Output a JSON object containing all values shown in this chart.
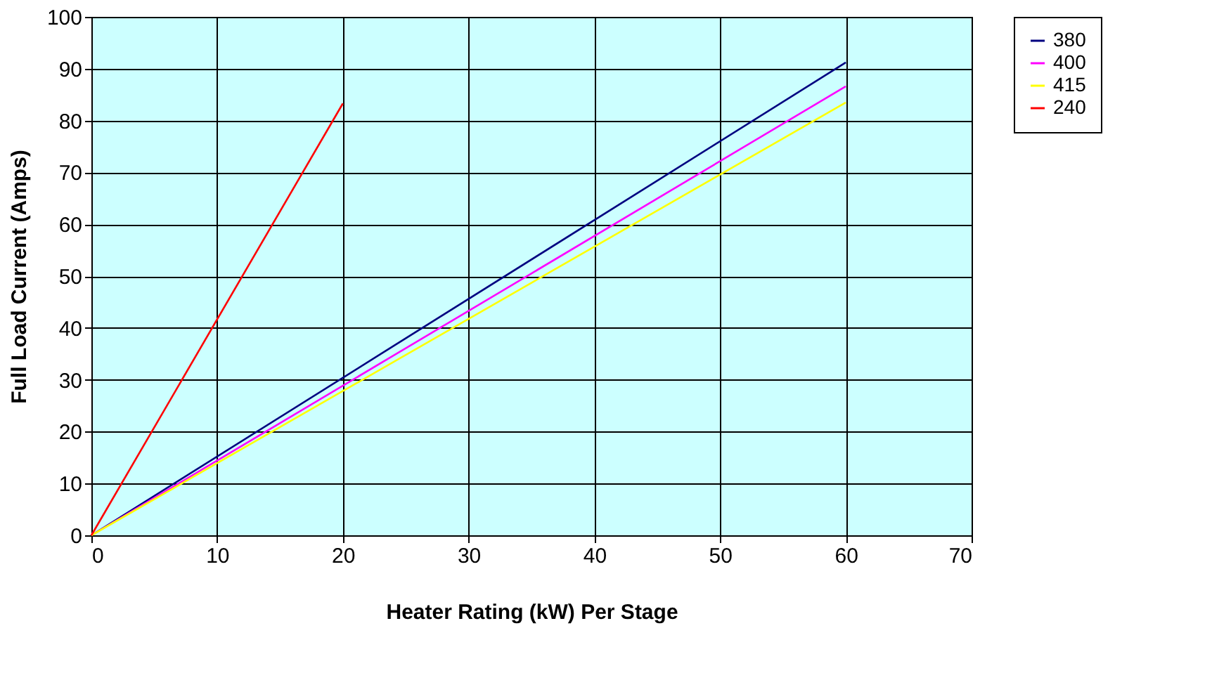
{
  "chart_data": {
    "type": "line",
    "xlabel": "Heater Rating (kW) Per Stage",
    "ylabel": "Full Load Current (Amps)",
    "series": [
      {
        "name": "380",
        "color": "#000080",
        "x": [
          0,
          60
        ],
        "values": [
          0,
          91.2
        ]
      },
      {
        "name": "400",
        "color": "#ff00ff",
        "x": [
          0,
          60
        ],
        "values": [
          0,
          86.6
        ]
      },
      {
        "name": "415",
        "color": "#ffff00",
        "x": [
          0,
          60
        ],
        "values": [
          0,
          83.5
        ]
      },
      {
        "name": "240",
        "color": "#ff0000",
        "x": [
          0,
          20
        ],
        "values": [
          0,
          83.3
        ]
      }
    ],
    "xlim": [
      0,
      70
    ],
    "xticks": [
      0,
      10,
      20,
      30,
      40,
      50,
      60,
      70
    ],
    "ylim": [
      0,
      100
    ],
    "yticks": [
      0,
      10,
      20,
      30,
      40,
      50,
      60,
      70,
      80,
      90,
      100
    ],
    "grid": true,
    "legend": "right",
    "marker": "none",
    "line_style": "solid"
  }
}
